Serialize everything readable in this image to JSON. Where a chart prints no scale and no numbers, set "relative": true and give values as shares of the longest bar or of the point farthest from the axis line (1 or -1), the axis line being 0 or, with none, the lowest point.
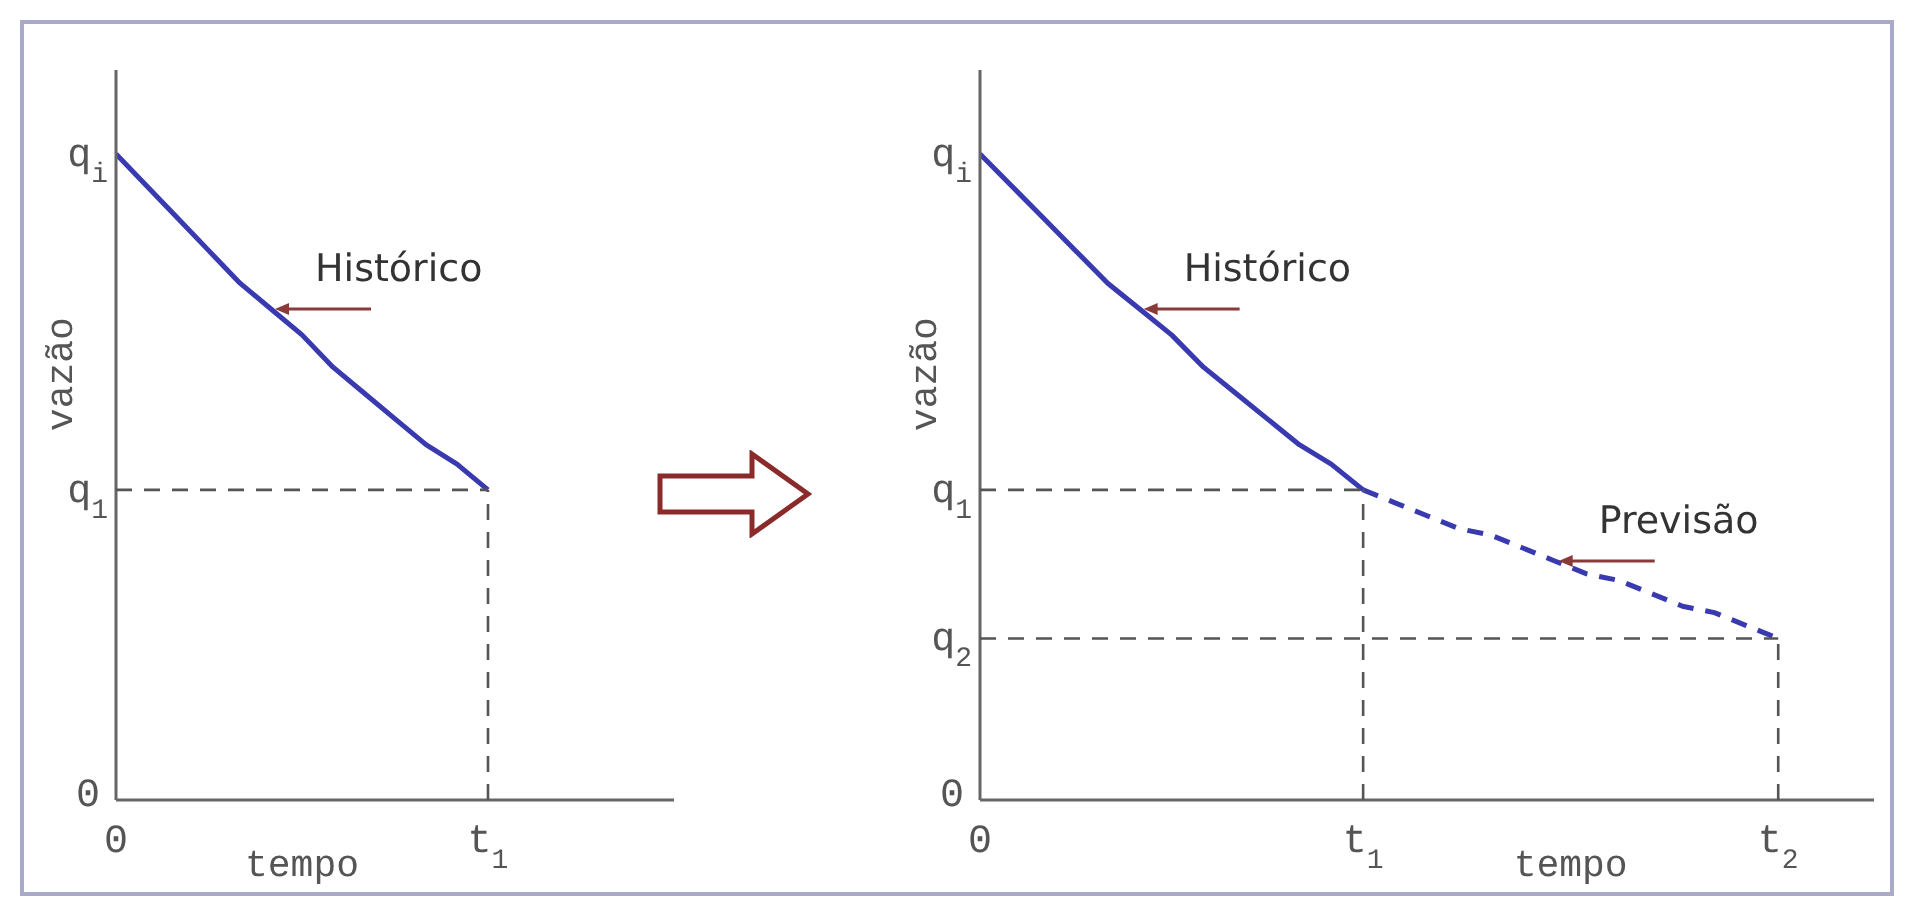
{
  "chart_data": [
    {
      "type": "line",
      "relative": true,
      "xlabel": "tempo",
      "ylabel": "vazão",
      "categories": [
        "0",
        null,
        null,
        null,
        null,
        null,
        null,
        null,
        null,
        null,
        null,
        null,
        "t$_{1}$",
        null,
        null,
        null,
        null,
        null,
        null
      ],
      "series": [
        {
          "color": "#3a3ab0",
          "line_style": "solid",
          "values": [
            1,
            0.95,
            0.9,
            0.85,
            0.8,
            0.76,
            0.72,
            0.67,
            0.63,
            0.59,
            0.55,
            0.52,
            0.48,
            null,
            null,
            null,
            null,
            null,
            null
          ]
        }
      ],
      "ref_lines": [
        {
          "axis": "y",
          "value": 0.48,
          "label": "q$_{1}$",
          "color": "#555555",
          "line_style": "dashed"
        },
        {
          "axis": "x",
          "value": "t$_{1}$",
          "color": "#555555",
          "line_style": "dashed"
        }
      ],
      "annotations": [
        {
          "text": "q$_{i}$",
          "x": "0",
          "y": 1
        },
        "0",
        "Histórico"
      ],
      "grid": false,
      "legend": false,
      "marker": "none"
    },
    {
      "type": "line",
      "relative": true,
      "xlabel": "tempo",
      "ylabel": "vazão",
      "categories": [
        "0",
        null,
        null,
        null,
        null,
        null,
        null,
        null,
        null,
        null,
        null,
        null,
        "t$_{1}$",
        null,
        null,
        null,
        null,
        null,
        null,
        null,
        null,
        null,
        null,
        null,
        null,
        "t$_{2}$",
        null,
        null,
        null
      ],
      "series": [
        {
          "color": "#3a3ab0",
          "line_style": "solid",
          "values": [
            1,
            0.95,
            0.9,
            0.85,
            0.8,
            0.76,
            0.72,
            0.67,
            0.63,
            0.59,
            0.55,
            0.52,
            0.48,
            null,
            null,
            null,
            null,
            null,
            null,
            null,
            null,
            null,
            null,
            null,
            null,
            null,
            null,
            null,
            null
          ]
        },
        {
          "color": "#3a3ab0",
          "line_style": "dashed",
          "values": [
            null,
            null,
            null,
            null,
            null,
            null,
            null,
            null,
            null,
            null,
            null,
            null,
            0.48,
            0.46,
            0.44,
            0.42,
            0.41,
            0.39,
            0.37,
            0.35,
            0.34,
            0.32,
            0.3,
            0.29,
            0.27,
            0.25,
            null,
            null,
            null
          ]
        }
      ],
      "ref_lines": [
        {
          "axis": "y",
          "value": 0.48,
          "label": "q$_{1}$",
          "color": "#555555",
          "line_style": "dashed"
        },
        {
          "axis": "y",
          "value": 0.25,
          "label": "q$_{2}$",
          "color": "#555555",
          "line_style": "dashed"
        },
        {
          "axis": "x",
          "value": "t$_{1}$",
          "color": "#555555",
          "line_style": "dashed"
        },
        {
          "axis": "x",
          "value": "t$_{2}$",
          "color": "#555555",
          "line_style": "dashed"
        }
      ],
      "annotations": [
        {
          "text": "q$_{i}$",
          "x": "0",
          "y": 1
        },
        "0",
        "Histórico",
        "Previsão"
      ],
      "grid": false,
      "legend": false,
      "marker": "none"
    }
  ]
}
